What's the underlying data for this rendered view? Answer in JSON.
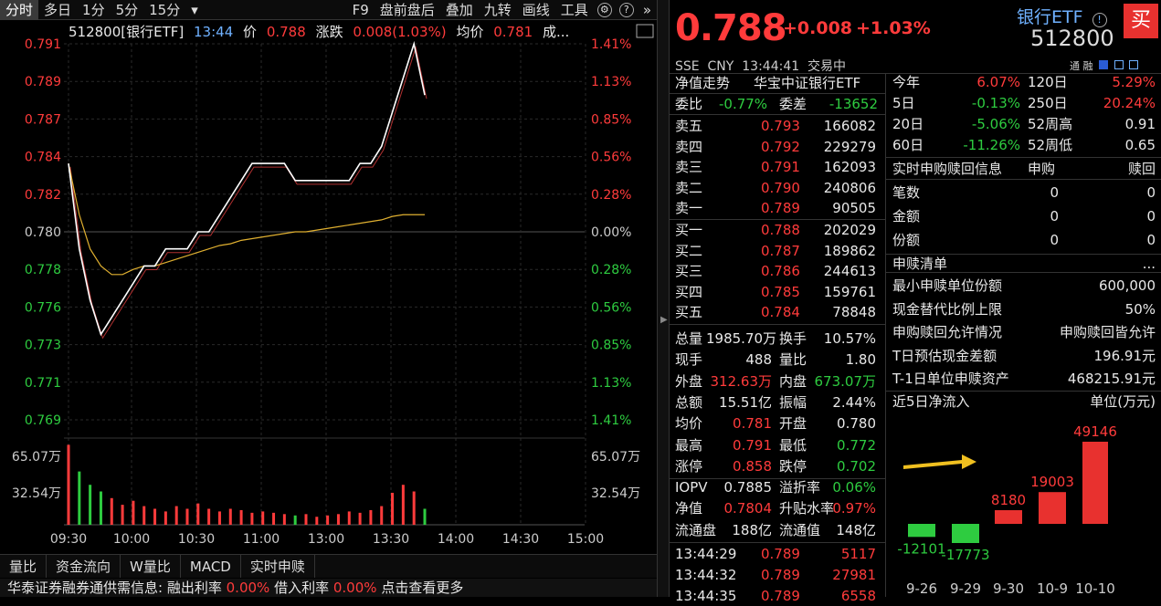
{
  "topbar": {
    "tabs": [
      "分时",
      "多日",
      "1分",
      "5分",
      "15分"
    ],
    "dropdown_glyph": "▾",
    "right": [
      "F9",
      "盘前盘后",
      "叠加",
      "九转",
      "画线",
      "工具"
    ]
  },
  "chartinfo": {
    "code_name": "512800[银行ETF]",
    "time": "13:44",
    "price_label": "价",
    "price": "0.788",
    "change_label": "涨跌",
    "change": "0.008(1.03%)",
    "avg_label": "均价",
    "avg": "0.781",
    "trail": "成..."
  },
  "yaxis_left": [
    "0.791",
    "0.789",
    "0.787",
    "0.784",
    "0.782",
    "0.780",
    "0.778",
    "0.776",
    "0.773",
    "0.771",
    "0.769"
  ],
  "yaxis_right": [
    "1.41%",
    "1.13%",
    "0.85%",
    "0.56%",
    "0.28%",
    "0.00%",
    "0.28%",
    "0.56%",
    "0.85%",
    "1.13%",
    "1.41%"
  ],
  "vol_axis": {
    "left": [
      "65.07万",
      "32.54万"
    ],
    "right": [
      "65.07万",
      "32.54万"
    ]
  },
  "xaxis": [
    "09:30",
    "10:00",
    "10:30",
    "11:00",
    "13:00",
    "13:30",
    "14:00",
    "14:30",
    "15:00"
  ],
  "chart_data": {
    "type": "line",
    "title": "512800[银行ETF]",
    "x": [
      "09:30",
      "09:35",
      "09:40",
      "09:45",
      "09:50",
      "09:55",
      "10:00",
      "10:05",
      "10:10",
      "10:15",
      "10:20",
      "10:25",
      "10:30",
      "10:35",
      "10:40",
      "10:45",
      "10:50",
      "10:55",
      "11:00",
      "11:05",
      "11:10",
      "11:15",
      "11:20",
      "11:25",
      "11:30",
      "13:05",
      "13:10",
      "13:15",
      "13:20",
      "13:25",
      "13:30",
      "13:35",
      "13:40",
      "13:44"
    ],
    "series": [
      {
        "values": [
          0.784,
          0.779,
          0.776,
          0.774,
          0.775,
          0.776,
          0.777,
          0.778,
          0.778,
          0.779,
          0.779,
          0.779,
          0.78,
          0.78,
          0.781,
          0.782,
          0.783,
          0.784,
          0.784,
          0.784,
          0.784,
          0.783,
          0.783,
          0.783,
          0.783,
          0.783,
          0.783,
          0.784,
          0.784,
          0.785,
          0.787,
          0.789,
          0.791,
          0.788
        ]
      },
      {
        "values": [
          0.784,
          0.781,
          0.779,
          0.778,
          0.7775,
          0.7775,
          0.7778,
          0.778,
          0.778,
          0.7782,
          0.7784,
          0.7786,
          0.7788,
          0.779,
          0.7792,
          0.7793,
          0.7795,
          0.7796,
          0.7797,
          0.7798,
          0.7799,
          0.78,
          0.78,
          0.7801,
          0.7802,
          0.7803,
          0.7804,
          0.7805,
          0.7806,
          0.7807,
          0.7809,
          0.781,
          0.781,
          0.781
        ]
      }
    ],
    "ylim": [
      0.769,
      0.791
    ],
    "volume": {
      "unit": "万",
      "max": 65.07,
      "values": [
        60,
        40,
        30,
        25,
        20,
        15,
        18,
        14,
        12,
        10,
        14,
        12,
        16,
        12,
        10,
        12,
        11,
        9,
        10,
        9,
        8,
        7,
        8,
        6,
        7,
        8,
        10,
        9,
        11,
        14,
        24,
        30,
        25,
        12
      ],
      "colors": [
        "red",
        "green"
      ]
    }
  },
  "bottomtabs": [
    "量比",
    "资金流向",
    "W量比",
    "MACD",
    "实时申赎"
  ],
  "news": {
    "source": "华泰证券融券通供需信息:",
    "l1": "融出利率",
    "v1": "0.00%",
    "l2": "借入利率",
    "v2": "0.00%",
    "more": "点击查看更多"
  },
  "divider_glyph": "▶",
  "quote": {
    "price": "0.788",
    "change": "+0.008",
    "change_pct": "+1.03%",
    "name": "银行ETF",
    "code": "512800",
    "buy": "买",
    "exchange": "SSE",
    "currency": "CNY",
    "time": "13:44:41",
    "status": "交易中",
    "mini": "通 融"
  },
  "nav": {
    "label": "净值走势",
    "fund": "华宝中证银行ETF"
  },
  "weibi": {
    "l1": "委比",
    "v1": "-0.77%",
    "l2": "委差",
    "v2": "-13652"
  },
  "asks": [
    {
      "label": "卖五",
      "price": "0.793",
      "vol": "166082"
    },
    {
      "label": "卖四",
      "price": "0.792",
      "vol": "229279"
    },
    {
      "label": "卖三",
      "price": "0.791",
      "vol": "162093"
    },
    {
      "label": "卖二",
      "price": "0.790",
      "vol": "240806"
    },
    {
      "label": "卖一",
      "price": "0.789",
      "vol": "90505"
    }
  ],
  "bids": [
    {
      "label": "买一",
      "price": "0.788",
      "vol": "202029"
    },
    {
      "label": "买二",
      "price": "0.787",
      "vol": "189862"
    },
    {
      "label": "买三",
      "price": "0.786",
      "vol": "244613"
    },
    {
      "label": "买四",
      "price": "0.785",
      "vol": "159761"
    },
    {
      "label": "买五",
      "price": "0.784",
      "vol": "78848"
    }
  ],
  "stats": [
    {
      "l1": "总量",
      "v1": "1985.70万",
      "l2": "换手",
      "v2": "10.57%"
    },
    {
      "l1": "现手",
      "v1": "488",
      "l2": "量比",
      "v2": "1.80"
    },
    {
      "l1": "外盘",
      "v1": "312.63万",
      "l2": "内盘",
      "v2": "673.07万"
    },
    {
      "l1": "总额",
      "v1": "15.51亿",
      "l2": "振幅",
      "v2": "2.44%"
    },
    {
      "l1": "均价",
      "v1": "0.781",
      "l2": "开盘",
      "v2": "0.780"
    },
    {
      "l1": "最高",
      "v1": "0.791",
      "l2": "最低",
      "v2": "0.772"
    },
    {
      "l1": "涨停",
      "v1": "0.858",
      "l2": "跌停",
      "v2": "0.702"
    },
    {
      "l1": "IOPV",
      "v1": "0.7885",
      "l2": "溢折率",
      "v2": "0.06%"
    },
    {
      "l1": "净值",
      "v1": "0.7804",
      "l2": "升贴水率",
      "v2": "0.97%"
    },
    {
      "l1": "流通盘",
      "v1": "188亿",
      "l2": "流通值",
      "v2": "148亿"
    }
  ],
  "ticks": [
    {
      "time": "13:44:29",
      "price": "0.789",
      "vol": "5117"
    },
    {
      "time": "13:44:32",
      "price": "0.789",
      "vol": "27981"
    },
    {
      "time": "13:44:35",
      "price": "0.789",
      "vol": "6558"
    }
  ],
  "perf": [
    {
      "l1": "今年",
      "v1": "6.07%",
      "l2": "120日",
      "v2": "5.29%"
    },
    {
      "l1": "5日",
      "v1": "-0.13%",
      "l2": "250日",
      "v2": "20.24%"
    },
    {
      "l1": "20日",
      "v1": "-5.06%",
      "l2": "52周高",
      "v2": "0.91"
    },
    {
      "l1": "60日",
      "v1": "-11.26%",
      "l2": "52周低",
      "v2": "0.65"
    }
  ],
  "sub": {
    "title": "实时申购赎回信息",
    "c1": "申购",
    "c2": "赎回",
    "rows": [
      {
        "label": "笔数",
        "v1": "0",
        "v2": "0"
      },
      {
        "label": "金额",
        "v1": "0",
        "v2": "0"
      },
      {
        "label": "份额",
        "v1": "0",
        "v2": "0"
      }
    ]
  },
  "list": {
    "title": "申赎清单",
    "more": "...",
    "rows": [
      {
        "label": "最小申赎单位份额",
        "value": "600,000"
      },
      {
        "label": "现金替代比例上限",
        "value": "50%"
      },
      {
        "label": "申购赎回允许情况",
        "value": "申购赎回皆允许"
      },
      {
        "label": "T日预估现金差额",
        "value": "196.91元"
      },
      {
        "label": "T-1日单位申赎资产",
        "value": "468215.91元"
      }
    ]
  },
  "flow": {
    "title": "近5日净流入",
    "unit": "单位(万元)",
    "dates": [
      "9-26",
      "9-29",
      "9-30",
      "10-9",
      "10-10"
    ],
    "values": [
      -12101,
      -17773,
      8180,
      19003,
      49146
    ],
    "labels": [
      "-12101",
      "-17773",
      "8180",
      "19003",
      "49146"
    ]
  }
}
